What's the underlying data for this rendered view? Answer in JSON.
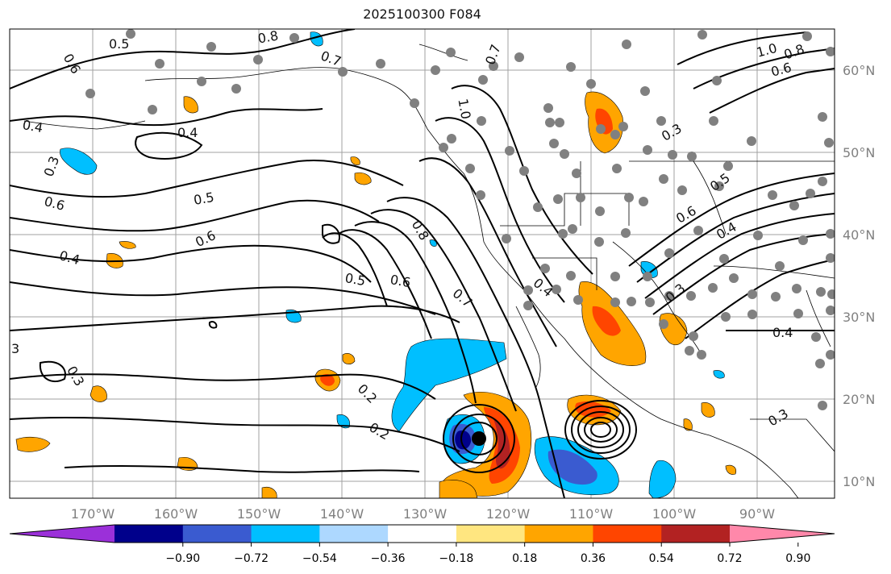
{
  "title": "2025100300 F084",
  "lat_labels": [
    "60°N",
    "50°N",
    "40°N",
    "30°N",
    "20°N",
    "10°N"
  ],
  "lon_labels": [
    "170°W",
    "160°W",
    "150°W",
    "140°W",
    "130°W",
    "120°W",
    "110°W",
    "100°W",
    "90°W"
  ],
  "colorbar": {
    "colors": [
      "#9b30d9",
      "#00008b",
      "#3a5bd0",
      "#00bfff",
      "#add8ff",
      "#ffffff",
      "#ffe680",
      "#ffa500",
      "#ff4500",
      "#b22222",
      "#ff88aa"
    ],
    "tick_labels": [
      "−0.90",
      "−0.72",
      "−0.54",
      "−0.36",
      "−0.18",
      "0.18",
      "0.36",
      "0.54",
      "0.72",
      "0.90"
    ]
  },
  "contour_labels": [
    "0.5",
    "0.6",
    "0.8",
    "0.7",
    "0.4",
    "0.3",
    "0.4",
    "0.6",
    "0.5",
    "0.6",
    "0.4",
    "0.5",
    "0.6",
    "0.8",
    "0.7",
    "0.4",
    "1.0",
    "0.7",
    "0.6",
    "1.0",
    "0.8",
    "0.3",
    "0.5",
    "0.6",
    "0.4",
    "0.3",
    "0.4",
    "0.3",
    "3",
    "0.2",
    "0.2",
    "0.3"
  ]
}
